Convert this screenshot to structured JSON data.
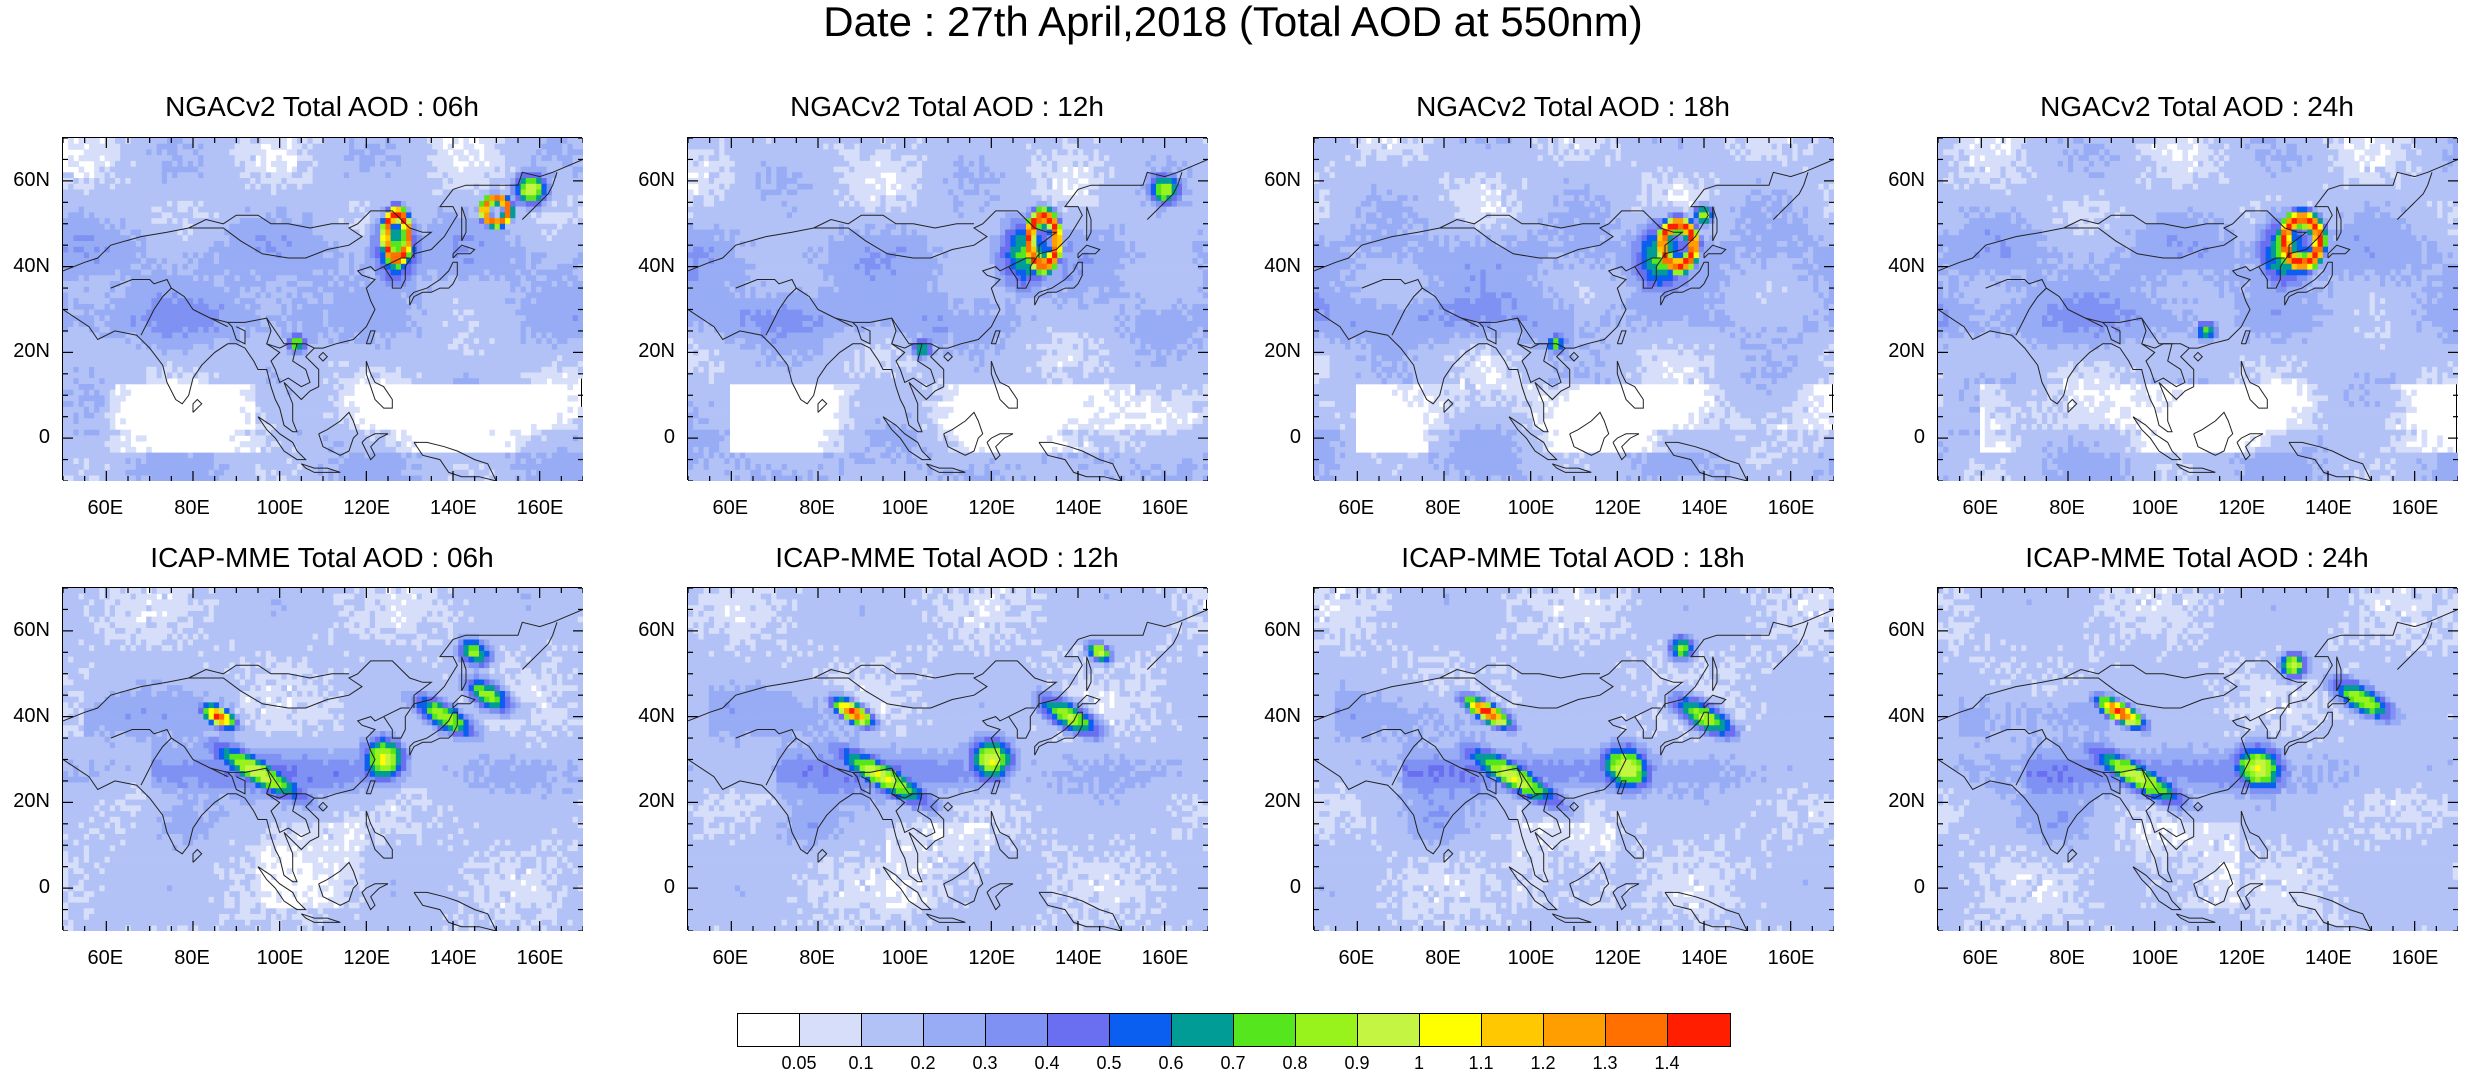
{
  "title": "Date : 27th April,2018 (Total AOD at 550nm)",
  "panels": [
    {
      "title": "NGACv2 Total AOD : 06h",
      "model": "NGACv2",
      "hour": 6
    },
    {
      "title": "NGACv2 Total AOD : 12h",
      "model": "NGACv2",
      "hour": 12
    },
    {
      "title": "NGACv2 Total AOD : 18h",
      "model": "NGACv2",
      "hour": 18
    },
    {
      "title": "NGACv2 Total AOD : 24h",
      "model": "NGACv2",
      "hour": 24
    },
    {
      "title": "ICAP-MME Total AOD : 06h",
      "model": "ICAP-MME",
      "hour": 6
    },
    {
      "title": "ICAP-MME Total AOD : 12h",
      "model": "ICAP-MME",
      "hour": 12
    },
    {
      "title": "ICAP-MME Total AOD : 18h",
      "model": "ICAP-MME",
      "hour": 18
    },
    {
      "title": "ICAP-MME Total AOD : 24h",
      "model": "ICAP-MME",
      "hour": 24
    }
  ],
  "axes": {
    "lon_ticks": [
      "60E",
      "80E",
      "100E",
      "120E",
      "140E",
      "160E"
    ],
    "lon_values": [
      60,
      80,
      100,
      120,
      140,
      160
    ],
    "lat_ticks": [
      "60N",
      "40N",
      "20N",
      "0"
    ],
    "lat_values": [
      60,
      40,
      20,
      0
    ],
    "lon_range": [
      50,
      170
    ],
    "lat_range": [
      -10,
      70
    ]
  },
  "colorbar": {
    "labels": [
      "0.05",
      "0.1",
      "0.2",
      "0.3",
      "0.4",
      "0.5",
      "0.6",
      "0.7",
      "0.8",
      "0.9",
      "1",
      "1.1",
      "1.2",
      "1.3",
      "1.4"
    ],
    "colors": [
      "#ffffff",
      "#d6def9",
      "#b3c2f6",
      "#97acf5",
      "#7f91f3",
      "#6a6ef0",
      "#0a5ef0",
      "#029c97",
      "#56e61e",
      "#98f31d",
      "#c3f542",
      "#ffff00",
      "#ffc800",
      "#ff9e00",
      "#ff7000",
      "#ff1e00"
    ]
  },
  "plumes": {
    "NGACv2": [
      [
        [
          127,
          47,
          3.2,
          6.5,
          1.45
        ],
        [
          127,
          44,
          6,
          9,
          0.75
        ],
        [
          150,
          53,
          3.5,
          3.5,
          1.4
        ],
        [
          158,
          58,
          4,
          4,
          1.0
        ],
        [
          104,
          22,
          2.5,
          2.5,
          0.8
        ]
      ],
      [
        [
          132,
          46,
          4,
          7,
          1.45
        ],
        [
          128,
          43,
          7,
          9,
          0.75
        ],
        [
          160,
          58,
          4,
          4,
          0.9
        ],
        [
          104,
          21,
          2.5,
          2.5,
          0.75
        ]
      ],
      [
        [
          134,
          45,
          4.5,
          6,
          1.45
        ],
        [
          130,
          42,
          7,
          9,
          0.75
        ],
        [
          140,
          52,
          2.5,
          2.5,
          0.9
        ],
        [
          106,
          22,
          2.5,
          2.5,
          0.75
        ]
      ],
      [
        [
          134,
          46,
          5,
          6.5,
          1.45
        ],
        [
          130,
          43,
          7,
          9,
          0.75
        ],
        [
          112,
          25,
          2.5,
          2.5,
          0.8
        ]
      ]
    ],
    "ICAP-MME": [
      [
        [
          86,
          40,
          4,
          2,
          1.45
        ],
        [
          95,
          27,
          12,
          3,
          1.0
        ],
        [
          124,
          30,
          5,
          5,
          1.0
        ],
        [
          138,
          40,
          8,
          3,
          0.9
        ],
        [
          148,
          45,
          6,
          3,
          0.85
        ],
        [
          145,
          55,
          4,
          3,
          0.85
        ]
      ],
      [
        [
          88,
          41,
          5,
          2,
          1.45
        ],
        [
          95,
          26,
          12,
          3,
          1.0
        ],
        [
          120,
          30,
          5,
          5,
          1.0
        ],
        [
          138,
          40,
          8,
          3,
          0.9
        ],
        [
          145,
          55,
          3,
          2,
          1.0
        ]
      ],
      [
        [
          90,
          41,
          6,
          2,
          1.45
        ],
        [
          96,
          26,
          12,
          3,
          1.0
        ],
        [
          122,
          28,
          6,
          5,
          1.0
        ],
        [
          140,
          40,
          8,
          3,
          0.9
        ],
        [
          135,
          56,
          3,
          3,
          0.85
        ]
      ],
      [
        [
          92,
          41,
          6,
          2,
          1.45
        ],
        [
          96,
          26,
          12,
          3,
          1.0
        ],
        [
          124,
          28,
          6,
          5,
          1.0
        ],
        [
          148,
          44,
          8,
          3,
          0.9
        ],
        [
          132,
          52,
          3,
          3,
          1.0
        ]
      ]
    ]
  }
}
